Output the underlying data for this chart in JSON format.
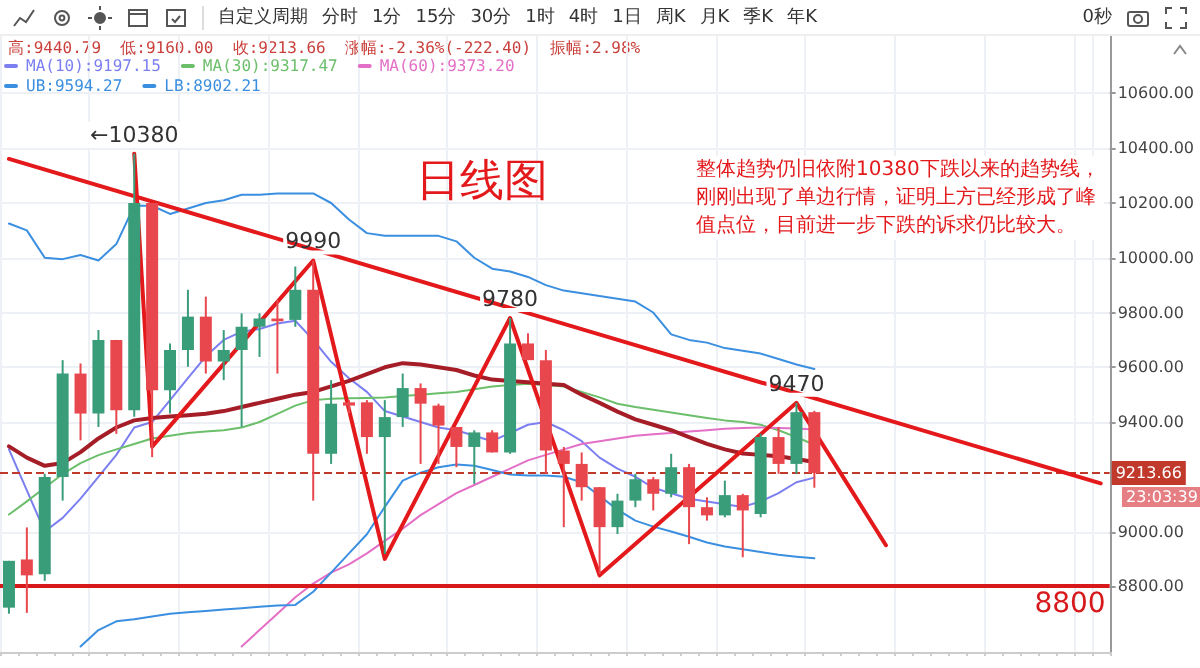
{
  "chart_data": {
    "type": "candlestick",
    "title": "日线图",
    "categories": [
      null,
      null,
      null,
      null,
      null,
      null,
      null,
      null,
      null,
      null,
      null,
      null,
      null,
      null,
      null,
      null,
      null,
      null,
      null,
      null,
      null,
      null,
      null,
      null,
      null,
      null,
      null,
      null,
      null,
      null,
      null,
      null,
      null,
      null,
      null,
      null,
      null,
      null,
      null,
      null,
      null,
      null,
      null,
      null,
      null,
      null,
      null,
      null,
      null,
      null,
      null,
      null,
      null,
      null,
      null,
      null,
      null,
      null,
      null,
      null,
      null,
      null
    ],
    "ohlc": [
      [
        8722,
        8893,
        8700,
        8893
      ],
      [
        8898,
        9015,
        8703,
        8840
      ],
      [
        8844,
        9211,
        8820,
        9199
      ],
      [
        9199,
        9626,
        9113,
        9577
      ],
      [
        9577,
        9614,
        9333,
        9431
      ],
      [
        9431,
        9736,
        9382,
        9700
      ],
      [
        9700,
        9700,
        9357,
        9443
      ],
      [
        9443,
        10380,
        9419,
        10200
      ],
      [
        10200,
        10200,
        9272,
        9516
      ],
      [
        9516,
        9687,
        9431,
        9663
      ],
      [
        9663,
        9883,
        9602,
        9785
      ],
      [
        9785,
        9858,
        9577,
        9621
      ],
      [
        9621,
        9736,
        9553,
        9663
      ],
      [
        9663,
        9797,
        9382,
        9748
      ],
      [
        9748,
        9797,
        9638,
        9778
      ],
      [
        9778,
        9846,
        9577,
        9768
      ],
      [
        9773,
        9968,
        9748,
        9883
      ],
      [
        9883,
        9990,
        9113,
        9284
      ],
      [
        9284,
        9553,
        9247,
        9467
      ],
      [
        9472,
        9480,
        9431,
        9460
      ],
      [
        9472,
        9480,
        9284,
        9345
      ],
      [
        9345,
        9480,
        8918,
        9418
      ],
      [
        9418,
        9577,
        9382,
        9524
      ],
      [
        9524,
        9541,
        9247,
        9467
      ],
      [
        9460,
        9467,
        9247,
        9387
      ],
      [
        9382,
        9382,
        9235,
        9309
      ],
      [
        9309,
        9370,
        9174,
        9362
      ],
      [
        9362,
        9370,
        9289,
        9289
      ],
      [
        9289,
        9780,
        9284,
        9687
      ],
      [
        9687,
        9724,
        9626,
        9626
      ],
      [
        9626,
        9663,
        9211,
        9296
      ],
      [
        9296,
        9309,
        9016,
        9247
      ],
      [
        9247,
        9289,
        9113,
        9162
      ],
      [
        9162,
        9162,
        8845,
        9016
      ],
      [
        9016,
        9138,
        8991,
        9113
      ],
      [
        9113,
        9211,
        9089,
        9191
      ],
      [
        9191,
        9199,
        9077,
        9138
      ],
      [
        9138,
        9284,
        9125,
        9235
      ],
      [
        9235,
        9247,
        8954,
        9089
      ],
      [
        9089,
        9125,
        9040,
        9059
      ],
      [
        9059,
        9186,
        9052,
        9133
      ],
      [
        9133,
        9138,
        8906,
        9077
      ],
      [
        9064,
        9357,
        9052,
        9345
      ],
      [
        9345,
        9382,
        9211,
        9247
      ],
      [
        9247,
        9470,
        9211,
        9436
      ],
      [
        9436.06,
        9440.79,
        9160,
        9213.66
      ],
      null,
      null,
      null,
      null,
      null,
      null,
      null,
      null,
      null,
      null,
      null,
      null,
      null,
      null,
      null,
      null
    ],
    "colors": [
      "#3a9d7a",
      "#e8474d",
      "#3a9d7a",
      "#3a9d7a",
      "#e8474d",
      "#3a9d7a",
      "#e8474d",
      "#3a9d7a",
      "#e8474d",
      "#3a9d7a",
      "#3a9d7a",
      "#e8474d",
      "#3a9d7a",
      "#3a9d7a",
      "#3a9d7a",
      "#e8474d",
      "#3a9d7a",
      "#e8474d",
      "#3a9d7a",
      "#e8474d",
      "#e8474d",
      "#3a9d7a",
      "#3a9d7a",
      "#e8474d",
      "#e8474d",
      "#e8474d",
      "#3a9d7a",
      "#e8474d",
      "#3a9d7a",
      "#e8474d",
      "#e8474d",
      "#e8474d",
      "#e8474d",
      "#e8474d",
      "#3a9d7a",
      "#3a9d7a",
      "#e8474d",
      "#3a9d7a",
      "#e8474d",
      "#e8474d",
      "#3a9d7a",
      "#e8474d",
      "#3a9d7a",
      "#e8474d",
      "#3a9d7a",
      "#e8474d",
      null,
      null,
      null,
      null,
      null,
      null,
      null,
      null,
      null,
      null,
      null,
      null,
      null,
      null,
      null,
      null
    ],
    "series": [
      {
        "type": "line",
        "name": "MA(10):9197.15",
        "color": "#7b7ff0",
        "values": [
          9300,
          9150,
          9000,
          9050,
          9120,
          9200,
          9280,
          9380,
          9400,
          9480,
          9560,
          9640,
          9700,
          9730,
          9740,
          9760,
          9770,
          9700,
          9620,
          9560,
          9510,
          9440,
          9420,
          9400,
          9380,
          9370,
          9350,
          9330,
          9360,
          9390,
          9400,
          9370,
          9330,
          9270,
          9230,
          9200,
          9160,
          9140,
          9120,
          9110,
          9100,
          9090,
          9110,
          9140,
          9180,
          9197,
          null,
          null,
          null,
          null,
          null,
          null,
          null,
          null,
          null,
          null,
          null,
          null,
          null,
          null,
          null,
          null
        ]
      },
      {
        "type": "line",
        "name": "MA(30):9317.47",
        "color": "#6cbf6a",
        "values": [
          9062,
          9110,
          9160,
          9210,
          9250,
          9279,
          9300,
          9320,
          9340,
          9350,
          9360,
          9365,
          9370,
          9380,
          9400,
          9430,
          9460,
          9480,
          9485,
          9487,
          9488,
          9490,
          9495,
          9500,
          9505,
          9510,
          9520,
          9530,
          9535,
          9540,
          null,
          9530,
          9510,
          9490,
          9467,
          9455,
          9445,
          9435,
          9425,
          9415,
          9406,
          9400,
          9390,
          9370,
          9345,
          9317,
          null,
          null,
          null,
          null,
          null,
          null,
          null,
          null,
          null,
          null,
          null,
          null,
          null,
          null,
          null,
          null
        ]
      },
      {
        "type": "line",
        "name": "MA(60):9373.20",
        "color": "#e36fc6",
        "values": [
          null,
          null,
          null,
          null,
          null,
          null,
          null,
          null,
          null,
          null,
          null,
          null,
          null,
          8580,
          8640,
          8700,
          8760,
          8810,
          8850,
          8880,
          8920,
          8966,
          9010,
          9060,
          9100,
          9140,
          9170,
          9200,
          9230,
          9260,
          9280,
          9300,
          9320,
          9330,
          9340,
          9350,
          9355,
          9360,
          9365,
          9370,
          9375,
          9378,
          9380,
          9378,
          9376,
          9373,
          null,
          null,
          null,
          null,
          null,
          null,
          null,
          null,
          null,
          null,
          null,
          null,
          null,
          null,
          null,
          null
        ]
      },
      {
        "type": "line",
        "name": "UB:9594.27",
        "color": "#3b8fe0",
        "values": [
          10125,
          10100,
          10000,
          9995,
          10010,
          9990,
          10050,
          10190,
          10190,
          10160,
          10180,
          10200,
          10210,
          10230,
          10230,
          10235,
          10235,
          10235,
          10200,
          10140,
          10090,
          10080,
          10080,
          10080,
          10080,
          10060,
          10000,
          9960,
          9950,
          9930,
          9900,
          9880,
          9870,
          9860,
          9850,
          9840,
          9800,
          9720,
          9700,
          9690,
          9670,
          9660,
          9650,
          9630,
          9610,
          9594,
          null,
          null,
          null,
          null,
          null,
          null,
          null,
          null,
          null,
          null,
          null,
          null,
          null,
          null,
          null,
          null
        ]
      },
      {
        "type": "line",
        "name": "LB:8902.21",
        "color": "#3b8fe0",
        "values": [
          null,
          null,
          null,
          null,
          8580,
          8640,
          8672,
          8680,
          8690,
          8700,
          8705,
          8710,
          8715,
          8720,
          8725,
          8730,
          8732,
          8780,
          8850,
          8920,
          8990,
          9090,
          9186,
          9215,
          9235,
          9245,
          9240,
          9225,
          9208,
          9205,
          9205,
          9200,
          9180,
          9130,
          9080,
          9040,
          9018,
          9000,
          8981,
          8960,
          8945,
          8935,
          8925,
          8915,
          8908,
          8902,
          null,
          null,
          null,
          null,
          null,
          null,
          null,
          null,
          null,
          null,
          null,
          null,
          null,
          null,
          null,
          null
        ]
      },
      {
        "type": "line",
        "color": "#a51d27",
        "values": [
          9311,
          9270,
          9240,
          9250,
          9290,
          9340,
          9380,
          9406,
          9415,
          9420,
          9425,
          9430,
          9440,
          9455,
          9470,
          9485,
          9500,
          9510,
          9530,
          9550,
          9575,
          9600,
          9615,
          9610,
          9600,
          9590,
          9570,
          9555,
          9550,
          9545,
          9540,
          9535,
          9500,
          9470,
          9438,
          9410,
          9390,
          9370,
          9345,
          9320,
          9300,
          9285,
          9280,
          9275,
          9265,
          9254,
          null,
          null,
          null,
          null,
          null,
          null,
          null,
          null,
          null,
          null,
          null,
          null,
          null,
          null,
          null,
          null
        ]
      },
      {
        "type": "line",
        "color": "#e3191c",
        "values": [
          10361,
          null,
          null,
          null,
          null,
          null,
          null,
          null,
          null,
          null,
          null,
          null,
          null,
          null,
          null,
          null,
          null,
          null,
          null,
          null,
          null,
          null,
          null,
          null,
          null,
          null,
          null,
          null,
          null,
          null,
          null,
          null,
          null,
          null,
          null,
          null,
          null,
          null,
          null,
          null,
          null,
          null,
          null,
          null,
          null,
          null,
          null,
          null,
          null,
          null,
          null,
          null,
          null,
          null,
          null,
          null,
          null,
          null,
          null,
          null,
          null,
          9176
        ]
      },
      {
        "type": "line",
        "color": "#e3191c",
        "values": [
          null,
          null,
          null,
          null,
          null,
          null,
          null,
          10380,
          9310,
          null,
          null,
          null,
          null,
          null,
          null,
          null,
          null,
          9990,
          null,
          null,
          null,
          8900,
          null,
          null,
          null,
          null,
          null,
          null,
          9780,
          null,
          null,
          null,
          null,
          8840,
          null,
          null,
          null,
          null,
          null,
          null,
          null,
          null,
          null,
          null,
          9470,
          null,
          null,
          null,
          null,
          8950,
          null,
          null,
          null,
          null,
          null,
          null,
          null,
          null,
          null,
          null,
          null,
          null
        ]
      }
    ],
    "ylim": [
      8560,
      10810
    ],
    "yticks": [
      {
        "value": 8800,
        "label": "8800.00"
      },
      {
        "value": 9000,
        "label": "9000.00"
      },
      {
        "value": 9400,
        "label": "9400.00"
      },
      {
        "value": 9600,
        "label": "9600.00"
      },
      {
        "value": 9800,
        "label": "9800.00"
      },
      {
        "value": 10000,
        "label": "10000.00"
      },
      {
        "value": 10200,
        "label": "10200.00"
      },
      {
        "value": 10400,
        "label": "10400.00"
      },
      {
        "value": 10600,
        "label": "10600.00"
      }
    ],
    "tick_labels": "y",
    "grid": true,
    "legend": "top left",
    "line_style": "solid",
    "ref_lines": [
      {
        "axis": "y",
        "value": 9213.66,
        "label": "9213.66",
        "color": "#c0392b",
        "line_style": "dashed"
      },
      {
        "axis": "y",
        "value": 8800,
        "label": "8800",
        "color": "#d7191c",
        "line_style": "solid"
      }
    ],
    "annotations": [
      "整体趋势仍旧依附10380下跌以来的趋势线，刚刚出现了单边行情，证明上方已经形成了峰值点位，目前进一步下跌的诉求仍比较大。",
      "23:03:39",
      "高:9440.79",
      "低:9160.00",
      "收:9213.66",
      "涨幅:-2.36%(-222.40)",
      "振幅:2.98%",
      "自定义周期",
      "分时",
      "1分",
      "15分",
      "30分",
      "1时",
      "4时",
      "1日",
      "周K",
      "月K",
      "季K",
      "年K",
      "0秒",
      "←10380",
      "9990",
      "9780",
      "9470"
    ]
  }
}
